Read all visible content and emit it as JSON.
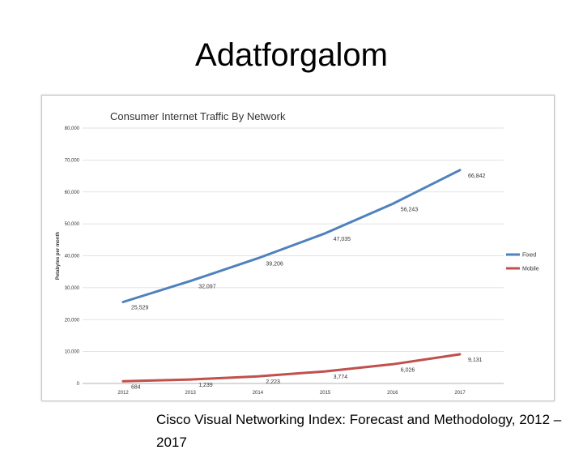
{
  "slide": {
    "title": "Adatforgalom",
    "caption": "Cisco Visual Networking Index: Forecast and Methodology, 2012 –2017"
  },
  "chart_data": {
    "type": "line",
    "title": "Consumer Internet Traffic By Network",
    "xlabel": "",
    "ylabel": "Petabytes per month",
    "x": [
      "2012",
      "2013",
      "2014",
      "2015",
      "2016",
      "2017"
    ],
    "ylim": [
      0,
      80000
    ],
    "yticks": [
      0,
      10000,
      20000,
      30000,
      40000,
      50000,
      60000,
      70000,
      80000
    ],
    "ytick_labels": [
      "0",
      "10,000",
      "20,000",
      "30,000",
      "40,000",
      "50,000",
      "60,000",
      "70,000",
      "80,000"
    ],
    "grid": true,
    "legend": "right",
    "series": [
      {
        "name": "Fixed",
        "color": "#4f81bd",
        "values": [
          25529,
          32097,
          39206,
          47035,
          56243,
          66842
        ],
        "labels": [
          "25,529",
          "32,097",
          "39,206",
          "47,035",
          "56,243",
          "66,842"
        ]
      },
      {
        "name": "Mobile",
        "color": "#c0504d",
        "values": [
          684,
          1239,
          2223,
          3774,
          6026,
          9131
        ],
        "labels": [
          "684",
          "1,239",
          "2,223",
          "3,774",
          "6,026",
          "9,131"
        ]
      }
    ]
  }
}
